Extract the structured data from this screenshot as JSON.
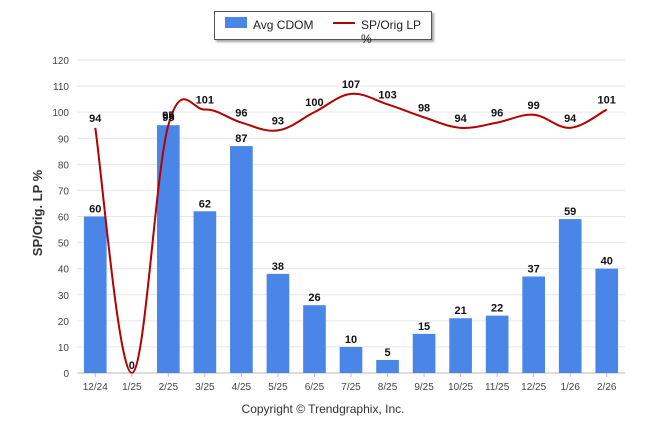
{
  "chart_data": {
    "type": "bar+line",
    "categories": [
      "12/24",
      "1/25",
      "2/25",
      "3/25",
      "4/25",
      "5/25",
      "6/25",
      "7/25",
      "8/25",
      "9/25",
      "10/25",
      "11/25",
      "12/25",
      "1/26",
      "2/26"
    ],
    "series": [
      {
        "name": "Avg CDOM",
        "type": "bar",
        "color": "#4a86e8",
        "values": [
          60,
          0,
          95,
          62,
          87,
          38,
          26,
          10,
          5,
          15,
          21,
          22,
          37,
          59,
          40
        ]
      },
      {
        "name": "SP/Orig LP %",
        "type": "line",
        "color": "#b30000",
        "values": [
          94,
          0,
          95,
          101,
          96,
          93,
          100,
          107,
          103,
          98,
          94,
          96,
          99,
          94,
          101
        ]
      }
    ],
    "ylabel": "SP/Orig. LP %",
    "ylim": [
      0,
      120
    ],
    "yticks": [
      0,
      10,
      20,
      30,
      40,
      50,
      60,
      70,
      80,
      90,
      100,
      110,
      120
    ],
    "legend_position": "top-center",
    "grid": true
  },
  "footer": "Copyright © Trendgraphix, Inc."
}
